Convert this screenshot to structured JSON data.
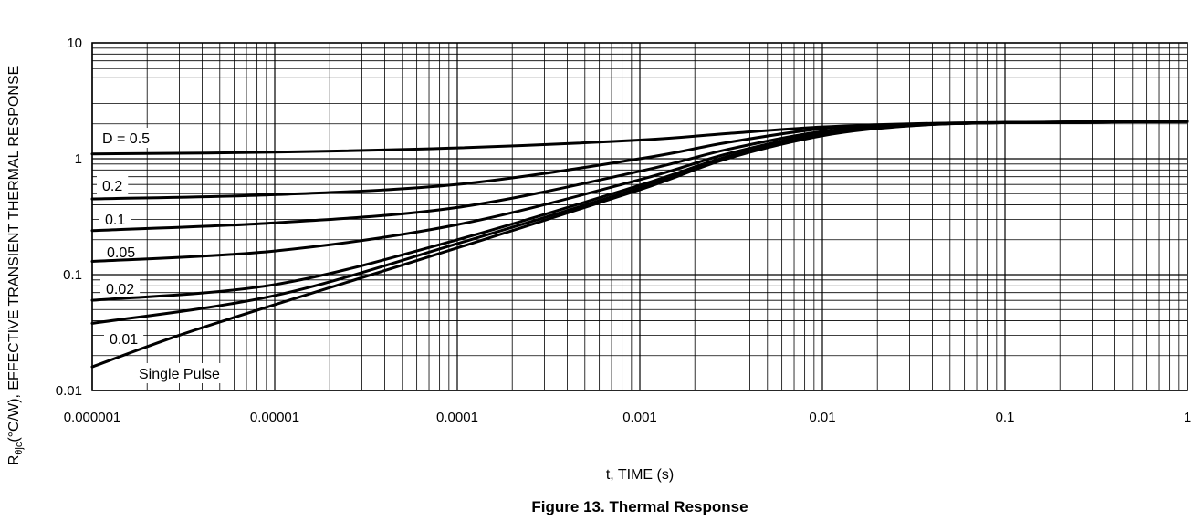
{
  "chart_data": {
    "type": "line",
    "title": "Figure 13. Thermal Response",
    "xlabel": "t, TIME (s)",
    "ylabel_prefix": "R",
    "ylabel_sub": "θjc",
    "ylabel_rest": "(°C/W), EFFECTIVE TRANSIENT THERMAL RESPONSE",
    "x_scale": "log",
    "y_scale": "log",
    "xlim": [
      1e-06,
      1
    ],
    "ylim": [
      0.01,
      10
    ],
    "grid": true,
    "x_ticks": [
      {
        "value": 1e-06,
        "label": "0.000001"
      },
      {
        "value": 1e-05,
        "label": "0.00001"
      },
      {
        "value": 0.0001,
        "label": "0.0001"
      },
      {
        "value": 0.001,
        "label": "0.001"
      },
      {
        "value": 0.01,
        "label": "0.01"
      },
      {
        "value": 0.1,
        "label": "0.1"
      },
      {
        "value": 1,
        "label": "1"
      }
    ],
    "y_ticks": [
      {
        "value": 0.01,
        "label": "0.01"
      },
      {
        "value": 0.1,
        "label": "0.1"
      },
      {
        "value": 1,
        "label": "1"
      },
      {
        "value": 10,
        "label": "10"
      }
    ],
    "series": [
      {
        "name": "D = 0.5",
        "x": [
          1e-06,
          1e-05,
          0.0001,
          0.001,
          0.003,
          0.01,
          0.03,
          0.1,
          1
        ],
        "y": [
          1.1,
          1.14,
          1.24,
          1.45,
          1.65,
          1.88,
          2.0,
          2.06,
          2.1
        ]
      },
      {
        "name": "0.2",
        "x": [
          1e-06,
          1e-05,
          0.0001,
          0.001,
          0.003,
          0.01,
          0.03,
          0.1,
          1
        ],
        "y": [
          0.45,
          0.49,
          0.6,
          1.0,
          1.38,
          1.82,
          1.98,
          2.05,
          2.1
        ]
      },
      {
        "name": "0.1",
        "x": [
          1e-06,
          1e-05,
          0.0001,
          0.001,
          0.003,
          0.01,
          0.03,
          0.1,
          1
        ],
        "y": [
          0.24,
          0.28,
          0.38,
          0.78,
          1.2,
          1.72,
          1.96,
          2.05,
          2.1
        ]
      },
      {
        "name": "0.05",
        "x": [
          1e-06,
          1e-05,
          0.0001,
          0.001,
          0.003,
          0.01,
          0.03,
          0.1,
          1
        ],
        "y": [
          0.13,
          0.16,
          0.27,
          0.66,
          1.1,
          1.66,
          1.95,
          2.05,
          2.1
        ]
      },
      {
        "name": "0.02",
        "x": [
          1e-06,
          1e-05,
          0.0001,
          0.001,
          0.003,
          0.01,
          0.03,
          0.1,
          1
        ],
        "y": [
          0.06,
          0.082,
          0.2,
          0.59,
          1.04,
          1.62,
          1.94,
          2.05,
          2.1
        ]
      },
      {
        "name": "0.01",
        "x": [
          1e-06,
          1e-05,
          0.0001,
          0.001,
          0.003,
          0.01,
          0.03,
          0.1,
          1
        ],
        "y": [
          0.038,
          0.066,
          0.185,
          0.56,
          1.01,
          1.6,
          1.93,
          2.05,
          2.1
        ]
      },
      {
        "name": "Single Pulse",
        "x": [
          1e-06,
          3e-06,
          1e-05,
          0.0001,
          0.001,
          0.003,
          0.01,
          0.03,
          0.1,
          1
        ],
        "y": [
          0.016,
          0.03,
          0.055,
          0.17,
          0.54,
          1.0,
          1.58,
          1.92,
          2.05,
          2.1
        ]
      }
    ]
  }
}
